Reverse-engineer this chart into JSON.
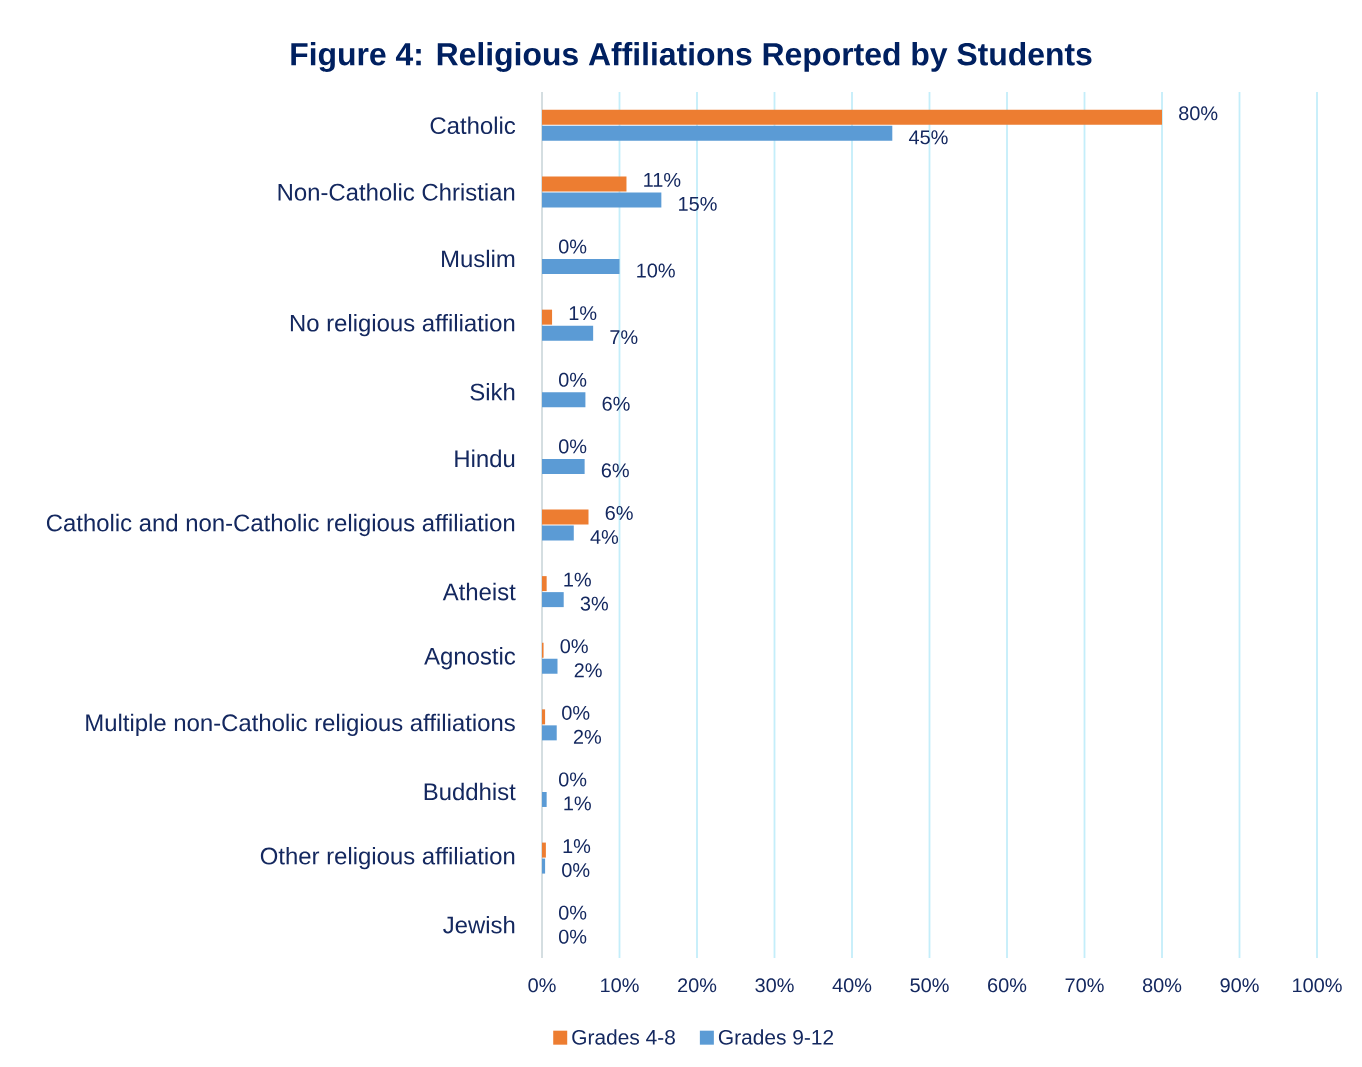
{
  "chart_data": {
    "type": "bar",
    "orientation": "horizontal",
    "title": "Figure 4: Religious Affiliations Reported by Students",
    "categories": [
      "Catholic",
      "Non-Catholic Christian",
      "Muslim",
      "No religious affiliation",
      "Sikh",
      "Hindu",
      "Catholic and non-Catholic religious affiliation",
      "Atheist",
      "Agnostic",
      "Multiple non-Catholic religious affiliations",
      "Buddhist",
      "Other religious affiliation",
      "Jewish"
    ],
    "series": [
      {
        "name": "Grades 4-8",
        "color": "#ed7d31",
        "values": [
          80,
          10.9,
          0,
          1.3,
          0,
          0,
          6.0,
          0.6,
          0.2,
          0.4,
          0,
          0.5,
          0
        ],
        "value_labels": [
          "80%",
          "11%",
          "0%",
          "1%",
          "0%",
          "0%",
          "6%",
          "1%",
          "0%",
          "0%",
          "0%",
          "1%",
          "0%"
        ]
      },
      {
        "name": "Grades 9-12",
        "color": "#5b9bd5",
        "values": [
          45.2,
          15.4,
          10.0,
          6.6,
          5.6,
          5.5,
          4.1,
          2.8,
          2.0,
          1.9,
          0.6,
          0.4,
          0
        ],
        "value_labels": [
          "45%",
          "15%",
          "10%",
          "7%",
          "6%",
          "6%",
          "4%",
          "3%",
          "2%",
          "2%",
          "1%",
          "0%",
          "0%"
        ]
      }
    ],
    "xlim": [
      0,
      100
    ],
    "xticks": [
      {
        "value": 0,
        "label": "0%"
      },
      {
        "value": 10,
        "label": "10%"
      },
      {
        "value": 20,
        "label": "20%"
      },
      {
        "value": 30,
        "label": "30%"
      },
      {
        "value": 40,
        "label": "40%"
      },
      {
        "value": 50,
        "label": "50%"
      },
      {
        "value": 60,
        "label": "60%"
      },
      {
        "value": 70,
        "label": "70%"
      },
      {
        "value": 80,
        "label": "80%"
      },
      {
        "value": 90,
        "label": "90%"
      },
      {
        "value": 100,
        "label": "100%"
      }
    ],
    "grid": "x",
    "legend": "bottom"
  }
}
